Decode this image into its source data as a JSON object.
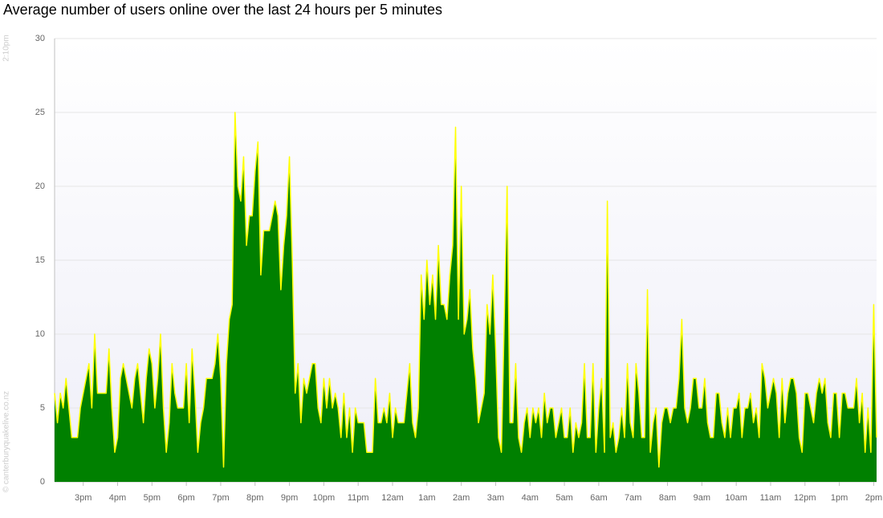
{
  "chart_data": {
    "type": "area",
    "title": "Average number of users online over the last 24 hours per 5 minutes",
    "start_label": "2:10pm",
    "credit": "© canterburyquakelive.co.nz",
    "categories": [
      null,
      null,
      null,
      null,
      null,
      null,
      null,
      null,
      null,
      null,
      "3pm",
      null,
      null,
      null,
      null,
      null,
      null,
      null,
      null,
      null,
      null,
      null,
      "4pm",
      null,
      null,
      null,
      null,
      null,
      null,
      null,
      null,
      null,
      null,
      null,
      "5pm",
      null,
      null,
      null,
      null,
      null,
      null,
      null,
      null,
      null,
      null,
      null,
      "6pm",
      null,
      null,
      null,
      null,
      null,
      null,
      null,
      null,
      null,
      null,
      null,
      "7pm",
      null,
      null,
      null,
      null,
      null,
      null,
      null,
      null,
      null,
      null,
      null,
      "8pm",
      null,
      null,
      null,
      null,
      null,
      null,
      null,
      null,
      null,
      null,
      null,
      "9pm",
      null,
      null,
      null,
      null,
      null,
      null,
      null,
      null,
      null,
      null,
      null,
      "10pm",
      null,
      null,
      null,
      null,
      null,
      null,
      null,
      null,
      null,
      null,
      null,
      "11pm",
      null,
      null,
      null,
      null,
      null,
      null,
      null,
      null,
      null,
      null,
      null,
      "12am",
      null,
      null,
      null,
      null,
      null,
      null,
      null,
      null,
      null,
      null,
      null,
      "1am",
      null,
      null,
      null,
      null,
      null,
      null,
      null,
      null,
      null,
      null,
      null,
      "2am",
      null,
      null,
      null,
      null,
      null,
      null,
      null,
      null,
      null,
      null,
      null,
      "3am",
      null,
      null,
      null,
      null,
      null,
      null,
      null,
      null,
      null,
      null,
      null,
      "4am",
      null,
      null,
      null,
      null,
      null,
      null,
      null,
      null,
      null,
      null,
      null,
      "5am",
      null,
      null,
      null,
      null,
      null,
      null,
      null,
      null,
      null,
      null,
      null,
      "6am",
      null,
      null,
      null,
      null,
      null,
      null,
      null,
      null,
      null,
      null,
      null,
      "7am",
      null,
      null,
      null,
      null,
      null,
      null,
      null,
      null,
      null,
      null,
      null,
      "8am",
      null,
      null,
      null,
      null,
      null,
      null,
      null,
      null,
      null,
      null,
      null,
      "9am",
      null,
      null,
      null,
      null,
      null,
      null,
      null,
      null,
      null,
      null,
      null,
      "10am",
      null,
      null,
      null,
      null,
      null,
      null,
      null,
      null,
      null,
      null,
      null,
      "11am",
      null,
      null,
      null,
      null,
      null,
      null,
      null,
      null,
      null,
      null,
      null,
      "12pm",
      null,
      null,
      null,
      null,
      null,
      null,
      null,
      null,
      null,
      null,
      null,
      "1pm",
      null,
      null,
      null,
      null,
      null,
      null,
      null,
      null,
      null,
      null,
      null,
      "2pm",
      null
    ],
    "values": [
      6,
      4,
      6,
      5,
      7,
      5,
      3,
      3,
      3,
      5,
      6,
      7,
      8,
      5,
      10,
      6,
      6,
      6,
      6,
      9,
      5,
      2,
      3,
      7,
      8,
      7,
      6,
      5,
      7,
      8,
      6,
      4,
      7,
      9,
      8,
      5,
      7,
      10,
      5,
      2,
      4,
      8,
      6,
      5,
      5,
      5,
      8,
      4,
      9,
      6,
      2,
      4,
      5,
      7,
      7,
      7,
      8,
      10,
      7,
      1,
      8,
      11,
      12,
      25,
      20,
      19,
      22,
      16,
      18,
      18,
      21,
      23,
      14,
      17,
      17,
      17,
      18,
      19,
      18,
      13,
      16,
      18,
      22,
      15,
      6,
      8,
      4,
      7,
      6,
      7,
      8,
      8,
      5,
      4,
      7,
      5,
      7,
      5,
      6,
      5,
      3,
      6,
      3,
      5,
      2,
      5,
      4,
      4,
      4,
      2,
      2,
      2,
      7,
      4,
      4,
      5,
      4,
      6,
      3,
      5,
      4,
      4,
      4,
      6,
      8,
      4,
      3,
      5,
      14,
      11,
      15,
      12,
      14,
      11,
      16,
      12,
      12,
      11,
      14,
      16,
      24,
      11,
      20,
      10,
      11,
      13,
      9,
      7,
      4,
      5,
      6,
      12,
      10,
      14,
      9,
      3,
      2,
      11,
      20,
      4,
      4,
      8,
      3,
      2,
      4,
      5,
      3,
      5,
      4,
      5,
      3,
      6,
      4,
      5,
      5,
      3,
      4,
      5,
      3,
      3,
      5,
      2,
      4,
      3,
      4,
      8,
      3,
      3,
      8,
      2,
      5,
      7,
      2,
      19,
      3,
      4,
      2,
      3,
      5,
      3,
      8,
      4,
      3,
      8,
      6,
      3,
      3,
      13,
      2,
      4,
      5,
      1,
      4,
      5,
      5,
      4,
      5,
      5,
      7,
      11,
      5,
      4,
      5,
      7,
      7,
      5,
      5,
      7,
      4,
      3,
      3,
      6,
      6,
      4,
      3,
      5,
      3,
      5,
      5,
      6,
      3,
      5,
      5,
      6,
      4,
      5,
      3,
      8,
      7,
      5,
      6,
      7,
      6,
      3,
      7,
      4,
      6,
      7,
      7,
      6,
      3,
      2,
      6,
      6,
      5,
      4,
      6,
      7,
      6,
      7,
      4,
      3,
      6,
      6,
      3,
      6,
      6,
      5,
      5,
      5,
      7,
      4,
      6,
      2,
      5,
      2,
      12,
      3
    ],
    "color": "#008000",
    "line_color": "#ffff00",
    "ylim": [
      0,
      30
    ],
    "yticks": [
      0,
      5,
      10,
      15,
      20,
      25,
      30
    ],
    "grid": true
  }
}
